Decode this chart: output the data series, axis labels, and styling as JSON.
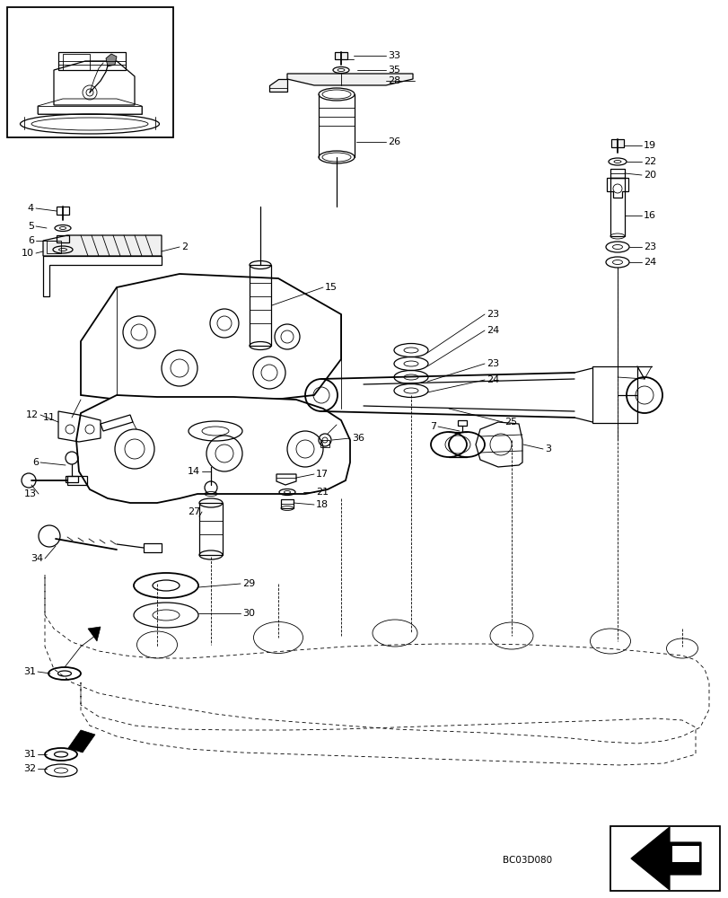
{
  "bg_color": "#ffffff",
  "figure_width": 8.12,
  "figure_height": 10.0,
  "dpi": 100,
  "watermark": "BC03D080"
}
